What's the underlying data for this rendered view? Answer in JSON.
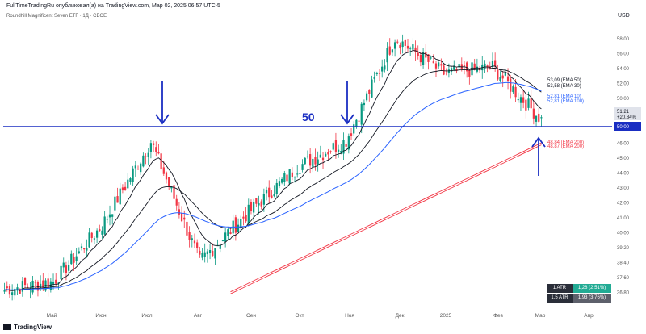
{
  "header": {
    "text": "FullTimeTradingRu опубликовал(а) на TradingView.com, Мар 02, 2025 06:57 UTC-5",
    "symbol": "Roundhill Magnificent Seven ETF · 1Д · CBOE",
    "currency": "USD"
  },
  "footer": {
    "brand": "TradingView"
  },
  "colors": {
    "up": "#089981",
    "down": "#f23645",
    "ema_black": "#131722",
    "ema100": "#2962ff",
    "ema200": "#f23645",
    "level": "#1a2ec2",
    "arrow": "#1a2ec2"
  },
  "annotations": {
    "level_label": "50"
  },
  "price_axis": {
    "ticks": [
      "58,00",
      "56,00",
      "54,00",
      "52,00",
      "50,00",
      "49,00",
      "47,00",
      "46,00",
      "45,00",
      "44,00",
      "43,00",
      "42,00",
      "41,00",
      "40,00",
      "39,20",
      "38,40",
      "37,60",
      "36,80"
    ],
    "level_tag": "50,00",
    "last_price": "51,21",
    "last_change": "+20,84%"
  },
  "time_axis": {
    "labels": [
      "Май",
      "Июн",
      "Июл",
      "Авг",
      "Сен",
      "Окт",
      "Ноя",
      "Дек",
      "2025",
      "Фев",
      "Мар",
      "Апр"
    ]
  },
  "ema_labels": {
    "ema50": "53,09 (EMA 50)",
    "ema30": "53,58 (EMA 30)",
    "ema10": "52,81 (EMA 10)",
    "ema100": "52,81 (EMA 100)",
    "ema200a": "48,84 (EMA 200)",
    "ema200b": "48,87 (EMA 200)"
  },
  "atr": [
    {
      "label": "1 ATR",
      "value": "1,28 (2,51%)"
    },
    {
      "label": "1,5 ATR",
      "value": "1,93 (3,76%)"
    }
  ],
  "chart_data": {
    "type": "line",
    "title": "Roundhill Magnificent Seven ETF · 1Д · CBOE",
    "xlabel": "",
    "ylabel": "USD",
    "x": [
      "Апр",
      "Май",
      "Июн",
      "Июл",
      "Авг",
      "Сен",
      "Окт",
      "Ноя",
      "Дек",
      "Янв",
      "Фев",
      "Мар"
    ],
    "ylim": [
      36.8,
      58.0
    ],
    "series": [
      {
        "name": "",
        "values": [
          38.0,
          38.6,
          43.0,
          49.5,
          40.2,
          44.0,
          47.5,
          49.6,
          57.6,
          54.8,
          55.3,
          51.21
        ]
      }
    ],
    "horizontal_level": 50.0,
    "legend": "none",
    "grid": false
  }
}
